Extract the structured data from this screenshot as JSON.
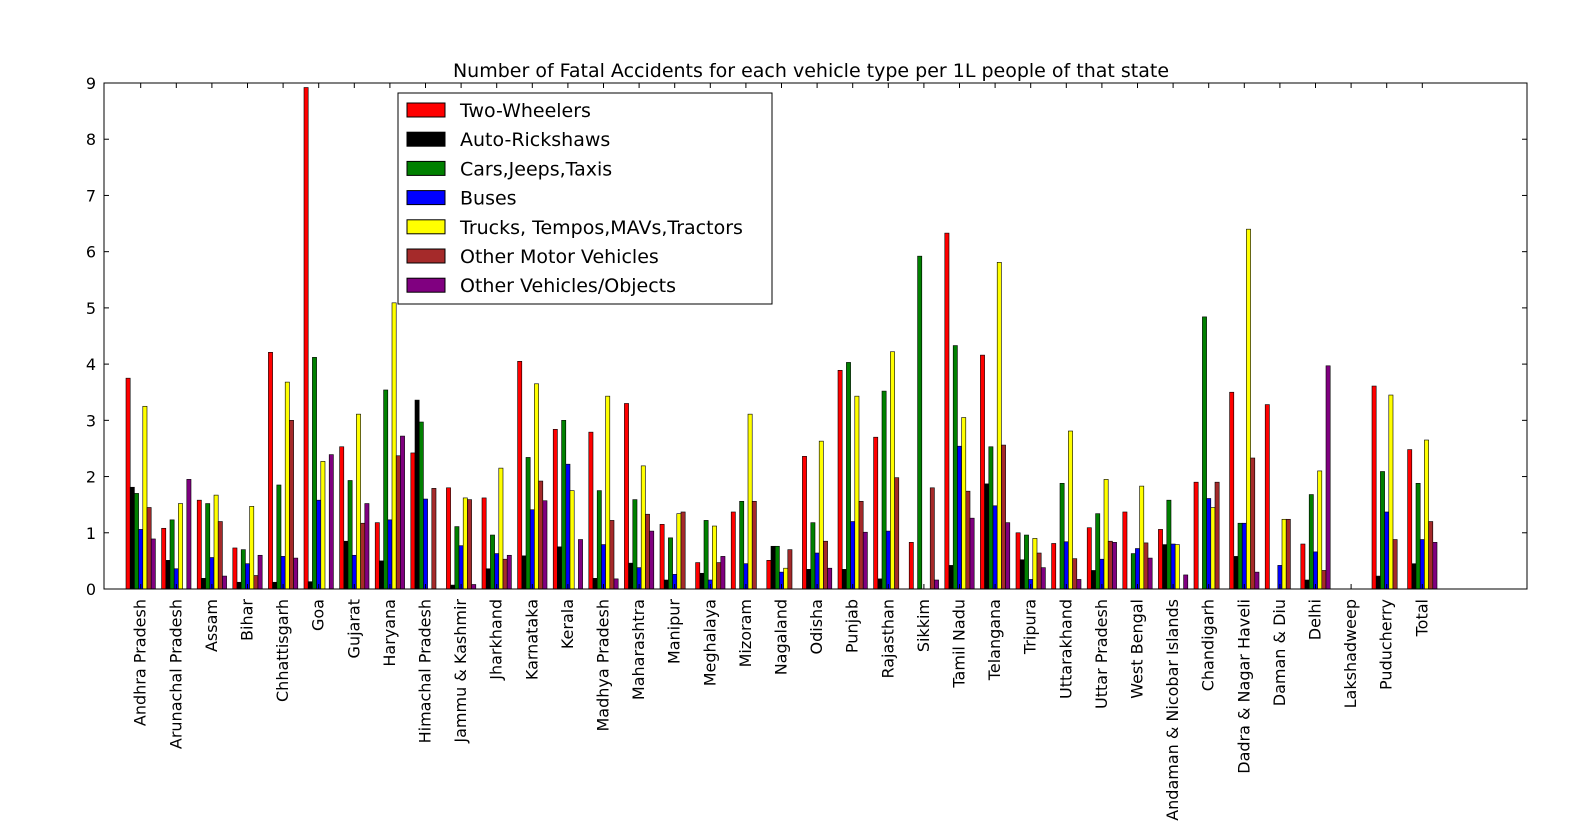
{
  "chart_data": {
    "type": "bar",
    "title": "Number of Fatal Accidents for each vehicle type per 1L people of that state",
    "xlabel": "",
    "ylabel": "",
    "ylim": [
      0,
      9
    ],
    "yticks": [
      "0",
      "1",
      "2",
      "3",
      "4",
      "5",
      "6",
      "7",
      "8",
      "9"
    ],
    "grid": false,
    "legend_position": "upper-left",
    "categories": [
      "Andhra Pradesh",
      "Arunachal Pradesh",
      "Assam",
      "Bihar",
      "Chhattisgarh",
      "Goa",
      "Gujarat",
      "Haryana",
      "Himachal Pradesh",
      "Jammu & Kashmir",
      "Jharkhand",
      "Karnataka",
      "Kerala",
      "Madhya Pradesh",
      "Maharashtra",
      "Manipur",
      "Meghalaya",
      "Mizoram",
      "Nagaland",
      "Odisha",
      "Punjab",
      "Rajasthan",
      "Sikkim",
      "Tamil Nadu",
      "Telangana",
      "Tripura",
      "Uttarakhand",
      "Uttar Pradesh",
      "West Bengal",
      "Andaman & Nicobar Islands",
      "Chandigarh",
      "Dadra & Nagar Haveli",
      "Daman & Diu",
      "Delhi",
      "Lakshadweep",
      "Puducherry",
      "Total"
    ],
    "series": [
      {
        "name": "Two-Wheelers",
        "color": "#ff0000",
        "values": [
          3.75,
          1.08,
          1.58,
          0.73,
          4.21,
          8.92,
          2.53,
          1.18,
          2.42,
          1.8,
          1.62,
          4.05,
          2.84,
          2.79,
          3.3,
          1.15,
          0.47,
          1.37,
          0.51,
          2.36,
          3.89,
          2.7,
          0.83,
          6.33,
          4.16,
          1.0,
          0.81,
          1.09,
          1.37,
          1.06,
          1.9,
          3.5,
          3.28,
          0.8,
          0.0,
          3.61,
          2.48
        ]
      },
      {
        "name": "Auto-Rickshaws",
        "color": "#000000",
        "values": [
          1.81,
          0.51,
          0.19,
          0.12,
          0.12,
          0.13,
          0.85,
          0.5,
          3.36,
          0.07,
          0.36,
          0.59,
          0.75,
          0.19,
          0.46,
          0.16,
          0.28,
          0.0,
          0.76,
          0.35,
          0.35,
          0.18,
          0.0,
          0.42,
          1.87,
          0.52,
          0.0,
          0.33,
          0.0,
          0.79,
          0.0,
          0.58,
          0.0,
          0.16,
          0.0,
          0.23,
          0.45
        ]
      },
      {
        "name": "Cars,Jeeps,Taxis",
        "color": "#008000",
        "values": [
          1.7,
          1.23,
          1.52,
          0.7,
          1.85,
          4.12,
          1.93,
          3.54,
          2.97,
          1.11,
          0.96,
          2.34,
          3.0,
          1.75,
          1.59,
          0.91,
          1.22,
          1.56,
          0.76,
          1.18,
          4.03,
          3.52,
          5.92,
          4.33,
          2.53,
          0.96,
          1.88,
          1.34,
          0.63,
          1.58,
          4.84,
          1.17,
          0.0,
          1.68,
          0.0,
          2.09,
          1.88
        ]
      },
      {
        "name": "Buses",
        "color": "#0000ff",
        "values": [
          1.06,
          0.36,
          0.56,
          0.45,
          0.58,
          1.58,
          0.6,
          1.23,
          1.6,
          0.77,
          0.63,
          1.41,
          2.22,
          0.79,
          0.38,
          0.26,
          0.16,
          0.45,
          0.3,
          0.64,
          1.2,
          1.03,
          0.0,
          2.54,
          1.48,
          0.17,
          0.84,
          0.53,
          0.72,
          0.8,
          1.61,
          1.17,
          0.42,
          0.66,
          0.0,
          1.37,
          0.88
        ]
      },
      {
        "name": "Trucks, Tempos,MAVs,Tractors",
        "color": "#ffff00",
        "values": [
          3.25,
          1.52,
          1.67,
          1.47,
          3.68,
          2.27,
          3.11,
          5.09,
          0.0,
          1.62,
          2.15,
          3.65,
          1.75,
          3.43,
          2.19,
          1.34,
          1.12,
          3.11,
          0.37,
          2.63,
          3.43,
          4.22,
          0.0,
          3.05,
          5.81,
          0.9,
          2.81,
          1.95,
          1.83,
          0.79,
          1.45,
          6.4,
          1.24,
          2.1,
          0.0,
          3.45,
          2.65
        ]
      },
      {
        "name": "Other Motor Vehicles",
        "color": "#a52a2a",
        "values": [
          1.45,
          0.0,
          1.2,
          0.24,
          3.0,
          0.0,
          1.17,
          2.37,
          1.79,
          1.59,
          0.53,
          1.92,
          0.0,
          1.22,
          1.33,
          1.37,
          0.47,
          1.56,
          0.7,
          0.85,
          1.56,
          1.98,
          1.8,
          1.74,
          2.56,
          0.64,
          0.54,
          0.85,
          0.82,
          0.0,
          1.9,
          2.33,
          1.24,
          0.33,
          0.0,
          0.88,
          1.2
        ]
      },
      {
        "name": "Other Vehicles/Objects",
        "color": "#800080",
        "values": [
          0.89,
          1.95,
          0.23,
          0.6,
          0.55,
          2.39,
          1.52,
          2.72,
          0.0,
          0.08,
          0.6,
          1.57,
          0.88,
          0.18,
          1.03,
          0.0,
          0.58,
          0.0,
          0.0,
          0.37,
          1.01,
          0.0,
          0.16,
          1.26,
          1.18,
          0.38,
          0.17,
          0.83,
          0.55,
          0.25,
          0.0,
          0.3,
          0.0,
          3.97,
          0.0,
          0.0,
          0.83
        ]
      }
    ]
  }
}
